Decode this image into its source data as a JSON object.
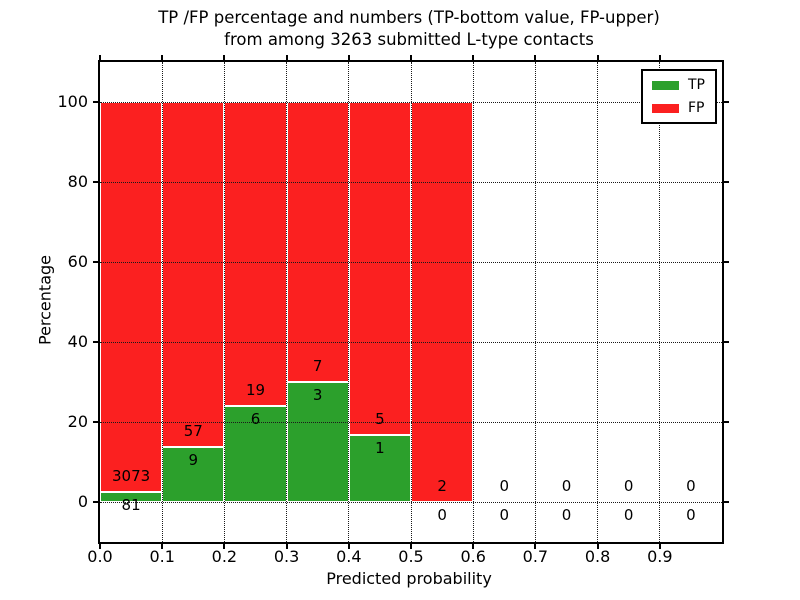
{
  "title": {
    "line1": "TP /FP percentage and numbers (TP-bottom value, FP-upper)",
    "line2": "from among 3263 submitted L-type contacts"
  },
  "axes": {
    "x_label": "Predicted probability",
    "y_label": "Percentage",
    "x_ticks": [
      "0.0",
      "0.1",
      "0.2",
      "0.3",
      "0.4",
      "0.5",
      "0.6",
      "0.7",
      "0.8",
      "0.9"
    ],
    "y_ticks": [
      "0",
      "20",
      "40",
      "60",
      "80",
      "100"
    ]
  },
  "legend": {
    "items": [
      {
        "label": "TP",
        "color": "#2ca02c"
      },
      {
        "label": "FP",
        "color": "#fb2020"
      }
    ]
  },
  "chart_data": {
    "type": "bar",
    "stacked": true,
    "normalized": "each bin scaled to 100%",
    "title": "TP /FP percentage and numbers (TP-bottom value, FP-upper) from among 3263 submitted L-type contacts",
    "xlabel": "Predicted probability",
    "ylabel": "Percentage",
    "xlim": [
      0.0,
      1.0
    ],
    "ylim": [
      -10,
      110
    ],
    "grid": true,
    "grid_style": "dotted",
    "legend_position": "upper right",
    "total_contacts": 3263,
    "bin_edges": [
      0.0,
      0.1,
      0.2,
      0.3,
      0.4,
      0.5,
      0.6,
      0.7,
      0.8,
      0.9,
      1.0
    ],
    "categories": [
      "0.0-0.1",
      "0.1-0.2",
      "0.2-0.3",
      "0.3-0.4",
      "0.4-0.5",
      "0.5-0.6",
      "0.6-0.7",
      "0.7-0.8",
      "0.8-0.9",
      "0.9-1.0"
    ],
    "series": [
      {
        "name": "TP",
        "color": "#2ca02c",
        "counts": [
          81,
          9,
          6,
          3,
          1,
          0,
          0,
          0,
          0,
          0
        ]
      },
      {
        "name": "FP",
        "color": "#fb2020",
        "counts": [
          3073,
          57,
          19,
          7,
          5,
          2,
          0,
          0,
          0,
          0
        ]
      }
    ],
    "tp_percent_of_bin": [
      2.57,
      13.64,
      24.0,
      30.0,
      16.67,
      0.0,
      null,
      null,
      null,
      null
    ]
  }
}
